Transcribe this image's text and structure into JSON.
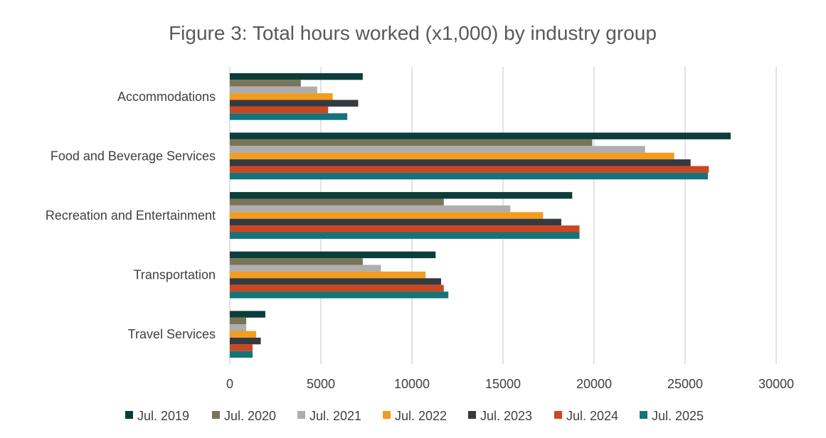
{
  "chart_data": {
    "type": "bar",
    "orientation": "horizontal",
    "title": "Figure 3: Total hours worked (x1,000) by industry group",
    "xlabel": "",
    "ylabel": "",
    "xlim": [
      0,
      30000
    ],
    "x_ticks": [
      0,
      5000,
      10000,
      15000,
      20000,
      25000,
      30000
    ],
    "x_tick_labels": [
      "0",
      "5000",
      "10000",
      "15000",
      "20000",
      "25000",
      "30000"
    ],
    "grid": true,
    "legend_position": "bottom",
    "categories": [
      "Accommodations",
      "Food and Beverage Services",
      "Recreation and Entertainment",
      "Transportation",
      "Travel Services"
    ],
    "series": [
      {
        "name": "Jul. 2019",
        "color": "#0b3d3a",
        "values": [
          7300,
          27500,
          18800,
          11300,
          1950
        ]
      },
      {
        "name": "Jul. 2020",
        "color": "#7a7459",
        "values": [
          3900,
          19900,
          11750,
          7300,
          900
        ]
      },
      {
        "name": "Jul. 2021",
        "color": "#aeaeae",
        "values": [
          4800,
          22800,
          15400,
          8300,
          900
        ]
      },
      {
        "name": "Jul. 2022",
        "color": "#f39c1f",
        "values": [
          5650,
          24400,
          17200,
          10750,
          1450
        ]
      },
      {
        "name": "Jul. 2023",
        "color": "#353a40",
        "values": [
          7050,
          25300,
          18200,
          11600,
          1700
        ]
      },
      {
        "name": "Jul. 2024",
        "color": "#cc4622",
        "values": [
          5400,
          26300,
          19200,
          11750,
          1250
        ]
      },
      {
        "name": "Jul. 2025",
        "color": "#137479",
        "values": [
          6450,
          26250,
          19200,
          12000,
          1250
        ]
      }
    ]
  }
}
